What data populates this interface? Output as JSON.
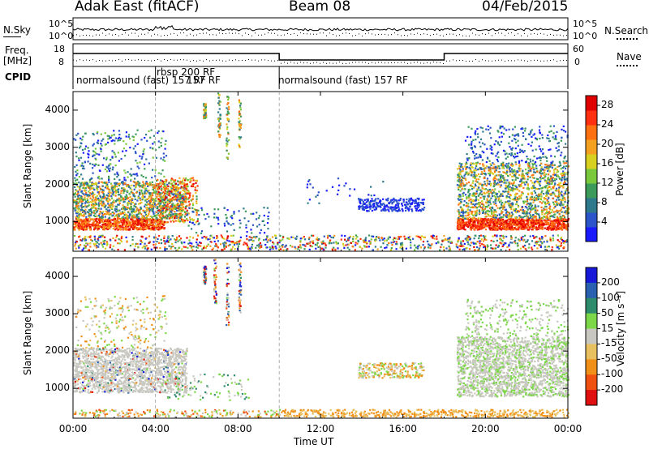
{
  "header": {
    "station": "Adak East (fitACF)",
    "beam": "Beam 08",
    "date": "04/Feb/2015"
  },
  "side_labels": {
    "nsky": "N.Sky",
    "freq_line1": "Freq.",
    "freq_line2": "[MHz]",
    "cpid": "CPID",
    "nsearch": "N.Search",
    "nave": "Nave",
    "nsky_top": "10^5",
    "nsky_bottom": "10^0",
    "nsearch_top": "10^5",
    "nsearch_bottom": "10^0",
    "freq_top": "18",
    "freq_bottom": "8",
    "nave_top": "60",
    "nave_bottom": "0"
  },
  "cpid_segments": [
    {
      "label": "normalsound (fast) 157 RF"
    },
    {
      "label": "rbsp 200 RF"
    },
    {
      "label": "normalsound (fast) 157 RF"
    }
  ],
  "cpid_labels": {
    "first": "normalsound (fast) 157 RF",
    "rbsp": "rbsp 200 RF",
    "rbsp_sub": "157 RF",
    "last": "normalsound (fast) 157 RF"
  },
  "chart_data": [
    {
      "type": "heatmap",
      "title": "Power",
      "xlabel": "Time UT",
      "ylabel": "Slant Range [km]",
      "xlim": [
        "00:00",
        "24:00"
      ],
      "ylim": [
        200,
        4500
      ],
      "x_ticks": [
        "00:00",
        "04:00",
        "08:00",
        "12:00",
        "16:00",
        "20:00",
        "00:00"
      ],
      "y_ticks": [
        1000,
        2000,
        3000,
        4000
      ],
      "colorbar": {
        "label": "Power [dB]",
        "ticks": [
          4,
          8,
          12,
          16,
          20,
          24,
          28
        ],
        "range": [
          0,
          30
        ]
      }
    },
    {
      "type": "heatmap",
      "title": "Velocity",
      "xlabel": "Time UT",
      "ylabel": "Slant Range [km]",
      "xlim": [
        "00:00",
        "24:00"
      ],
      "ylim": [
        200,
        4500
      ],
      "x_ticks": [
        "00:00",
        "04:00",
        "08:00",
        "12:00",
        "16:00",
        "20:00",
        "00:00"
      ],
      "y_ticks": [
        1000,
        2000,
        3000,
        4000
      ],
      "colorbar": {
        "label": "Velocity [m s^-1]",
        "ticks": [
          200,
          100,
          50,
          15,
          -15,
          -50,
          -100,
          -200
        ]
      }
    }
  ],
  "axis_labels": {
    "slant_range_1": "Slant Range [km]",
    "slant_range_2": "Slant Range [km]",
    "time_ut": "Time UT",
    "power": "Power [dB]",
    "velocity": "Velocity [m s⁻¹]"
  },
  "colors": {
    "power_scale": [
      "#1a1aff",
      "#2b55c8",
      "#2e7a8c",
      "#3c9a5a",
      "#7ac83c",
      "#d8d020",
      "#f4a020",
      "#ff7010",
      "#ff3010",
      "#e00000"
    ],
    "velocity_scale": [
      "#1818d8",
      "#2a60b0",
      "#2e8c6c",
      "#7cd848",
      "#c8c8c0",
      "#e8c060",
      "#f09018",
      "#f05010",
      "#e01010"
    ]
  }
}
